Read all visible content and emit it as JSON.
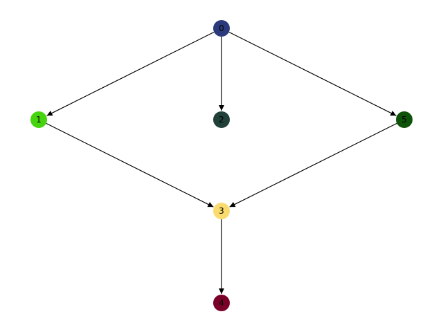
{
  "graph": {
    "directed": true,
    "nodes": [
      {
        "id": "0",
        "label": "0",
        "color": "#2b3a7a"
      },
      {
        "id": "1",
        "label": "1",
        "color": "#45d40d"
      },
      {
        "id": "2",
        "label": "2",
        "color": "#21403a"
      },
      {
        "id": "5",
        "label": "5",
        "color": "#0f520a"
      },
      {
        "id": "3",
        "label": "3",
        "color": "#fadc6e"
      },
      {
        "id": "4",
        "label": "4",
        "color": "#7a0028"
      }
    ],
    "edges": [
      {
        "source": "0",
        "target": "1"
      },
      {
        "source": "0",
        "target": "2"
      },
      {
        "source": "0",
        "target": "5"
      },
      {
        "source": "1",
        "target": "3"
      },
      {
        "source": "5",
        "target": "3"
      },
      {
        "source": "3",
        "target": "4"
      }
    ],
    "edge_color": "#000000",
    "label_color": "#000000"
  }
}
